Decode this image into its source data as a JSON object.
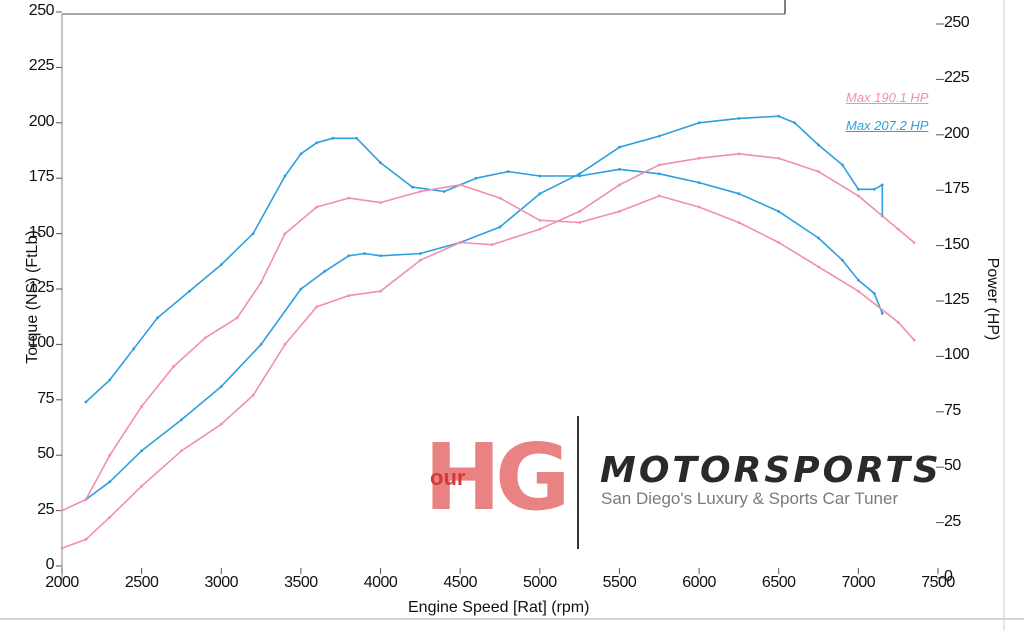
{
  "chart_data": {
    "type": "line",
    "xlabel": "Engine Speed [Rat] (rpm)",
    "ylabel_left": "Torque (NS) (FtLb)",
    "ylabel_right": "Power (HP)",
    "xlim": [
      2000,
      7500
    ],
    "ylim_left": [
      0,
      250
    ],
    "ylim_right": [
      0,
      250
    ],
    "x_ticks": [
      "2000",
      "2500",
      "3000",
      "3500",
      "4000",
      "4500",
      "5000",
      "5500",
      "6000",
      "6500",
      "7000",
      "7500"
    ],
    "y_ticks_left": [
      "0",
      "25",
      "50",
      "75",
      "100",
      "125",
      "150",
      "175",
      "200",
      "225",
      "250"
    ],
    "y_ticks_right": [
      "0",
      "25",
      "50",
      "75",
      "100",
      "125",
      "150",
      "175",
      "200",
      "225",
      "250"
    ],
    "grid": false,
    "legend_position": "top-right",
    "legend": [
      "Max 190.1 HP",
      "Max 207.2 HP"
    ],
    "colors": {
      "blue": "#2d9fe0",
      "pink": "#f28fab"
    },
    "series": [
      {
        "name": "Max 207.2 HP",
        "color": "#2d9fe0",
        "axis": "right",
        "x": [
          2150,
          2300,
          2500,
          2750,
          3000,
          3250,
          3500,
          3650,
          3800,
          3900,
          4000,
          4250,
          4500,
          4750,
          5000,
          5250,
          5500,
          5750,
          6000,
          6250,
          6500,
          6600,
          6750,
          6900,
          7000,
          7100,
          7150,
          7150
        ],
        "values": [
          30,
          38,
          52,
          66,
          81,
          100,
          125,
          133,
          140,
          141,
          140,
          141,
          146,
          153,
          168,
          177,
          189,
          194,
          200,
          202,
          203,
          200,
          190,
          181,
          170,
          170,
          172,
          158
        ]
      },
      {
        "name": "",
        "color": "#2d9fe0",
        "axis": "left",
        "x": [
          2150,
          2300,
          2450,
          2600,
          2800,
          3000,
          3200,
          3400,
          3500,
          3600,
          3700,
          3850,
          4000,
          4200,
          4400,
          4600,
          4800,
          5000,
          5250,
          5500,
          5750,
          6000,
          6250,
          6500,
          6750,
          6900,
          7000,
          7100,
          7150
        ],
        "values": [
          74,
          84,
          98,
          112,
          124,
          136,
          150,
          176,
          186,
          191,
          193,
          193,
          182,
          171,
          169,
          175,
          178,
          176,
          176,
          179,
          177,
          173,
          168,
          160,
          148,
          138,
          129,
          123,
          114
        ]
      },
      {
        "name": "Max 190.1 HP",
        "color": "#f28fab",
        "axis": "right",
        "x": [
          2000,
          2150,
          2300,
          2500,
          2750,
          3000,
          3200,
          3400,
          3600,
          3800,
          4000,
          4250,
          4500,
          4700,
          5000,
          5250,
          5500,
          5750,
          6000,
          6250,
          6500,
          6750,
          7000,
          7250,
          7350
        ],
        "values": [
          8,
          12,
          22,
          36,
          52,
          64,
          77,
          100,
          117,
          122,
          124,
          138,
          146,
          145,
          152,
          160,
          172,
          181,
          184,
          186,
          184,
          178,
          167,
          152,
          146
        ]
      },
      {
        "name": "",
        "color": "#f28fab",
        "axis": "left",
        "x": [
          2000,
          2150,
          2300,
          2500,
          2700,
          2900,
          3100,
          3250,
          3400,
          3600,
          3800,
          4000,
          4250,
          4500,
          4750,
          5000,
          5250,
          5500,
          5750,
          6000,
          6250,
          6500,
          6750,
          7000,
          7250,
          7350
        ],
        "values": [
          25,
          30,
          50,
          72,
          90,
          103,
          112,
          128,
          150,
          162,
          166,
          164,
          169,
          172,
          166,
          156,
          155,
          160,
          167,
          162,
          155,
          146,
          135,
          124,
          110,
          102
        ]
      }
    ]
  },
  "watermark": {
    "hg": "HG",
    "our": "our",
    "brand": "MOTORSPORTS",
    "tagline": "San Diego's Luxury & Sports Car Tuner"
  }
}
